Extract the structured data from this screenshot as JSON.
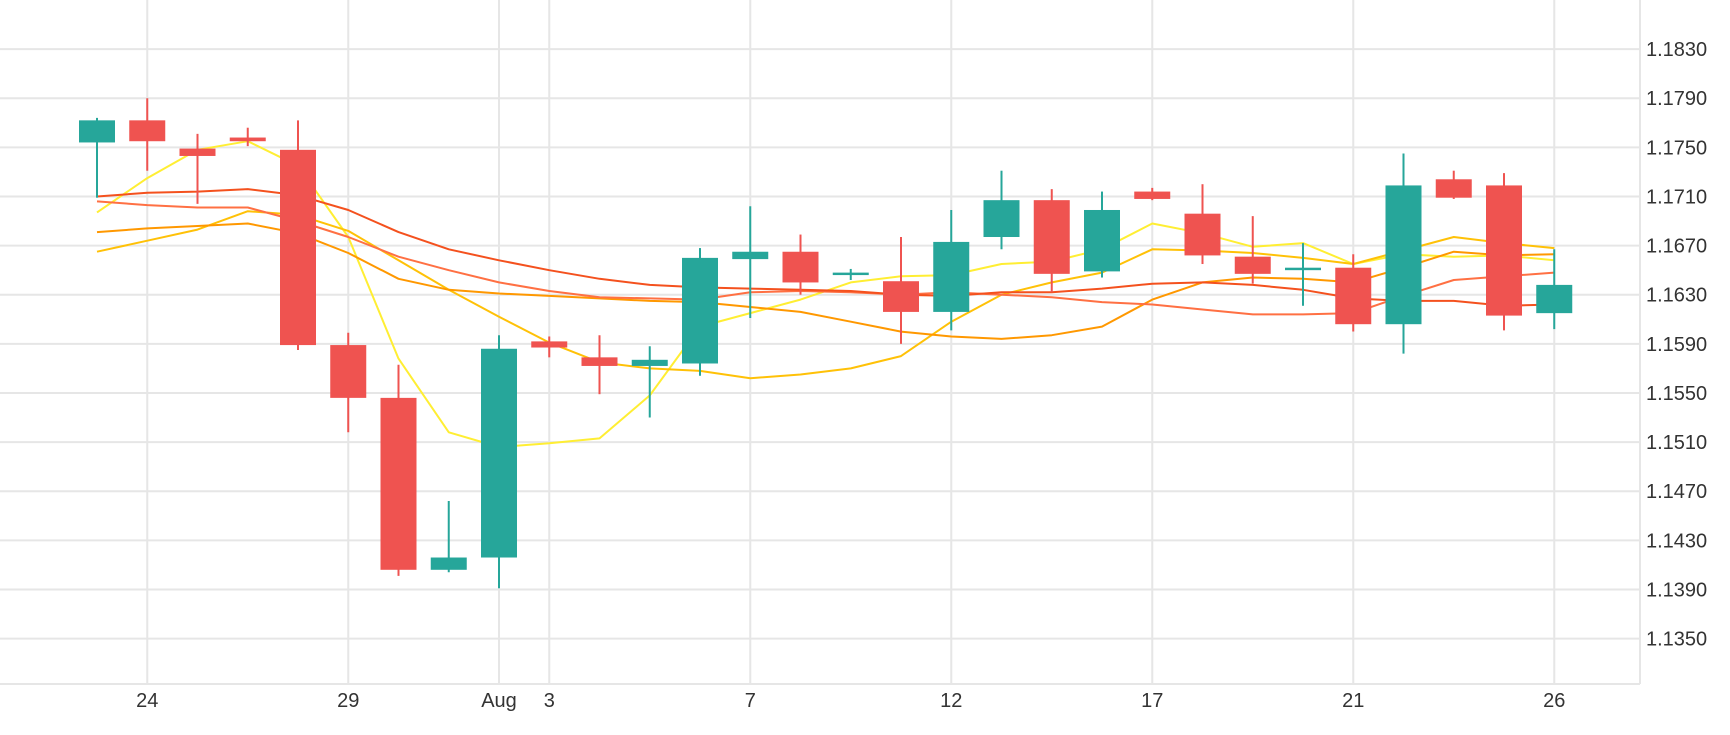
{
  "chart_data": {
    "type": "candlestick",
    "y_ticks": [
      "1.1830",
      "1.1790",
      "1.1750",
      "1.1710",
      "1.1670",
      "1.1630",
      "1.1590",
      "1.1550",
      "1.1510",
      "1.1470",
      "1.1430",
      "1.1390",
      "1.1350"
    ],
    "x_ticks": [
      {
        "label": "24",
        "day": 1
      },
      {
        "label": "29",
        "day": 5
      },
      {
        "label": "Aug",
        "day": 8
      },
      {
        "label": "3",
        "day": 9
      },
      {
        "label": "7",
        "day": 13
      },
      {
        "label": "12",
        "day": 17
      },
      {
        "label": "17",
        "day": 21
      },
      {
        "label": "21",
        "day": 25
      },
      {
        "label": "26",
        "day": 29
      }
    ],
    "ylim": [
      1.1313,
      1.187
    ],
    "grid": true,
    "colors": {
      "up": "#26a69a",
      "down": "#ef5350",
      "grid": "#e6e6e6"
    },
    "candles": [
      {
        "day": 0,
        "open": 1.1754,
        "high": 1.1774,
        "low": 1.1709,
        "close": 1.1772
      },
      {
        "day": 1,
        "open": 1.1772,
        "high": 1.179,
        "low": 1.1731,
        "close": 1.1755
      },
      {
        "day": 2,
        "open": 1.1749,
        "high": 1.1761,
        "low": 1.1704,
        "close": 1.1743
      },
      {
        "day": 3,
        "open": 1.1758,
        "high": 1.1766,
        "low": 1.1751,
        "close": 1.1755
      },
      {
        "day": 4,
        "open": 1.1748,
        "high": 1.1772,
        "low": 1.1585,
        "close": 1.1589
      },
      {
        "day": 5,
        "open": 1.1589,
        "high": 1.1599,
        "low": 1.1518,
        "close": 1.1546
      },
      {
        "day": 6,
        "open": 1.1546,
        "high": 1.1573,
        "low": 1.1401,
        "close": 1.1406
      },
      {
        "day": 7,
        "open": 1.1406,
        "high": 1.1462,
        "low": 1.1404,
        "close": 1.1416
      },
      {
        "day": 8,
        "open": 1.1416,
        "high": 1.1597,
        "low": 1.1391,
        "close": 1.1586
      },
      {
        "day": 9,
        "open": 1.1592,
        "high": 1.1596,
        "low": 1.1579,
        "close": 1.1587
      },
      {
        "day": 10,
        "open": 1.1579,
        "high": 1.1597,
        "low": 1.1549,
        "close": 1.1572
      },
      {
        "day": 11,
        "open": 1.1572,
        "high": 1.1588,
        "low": 1.153,
        "close": 1.1577
      },
      {
        "day": 12,
        "open": 1.1574,
        "high": 1.1668,
        "low": 1.1564,
        "close": 1.166
      },
      {
        "day": 13,
        "open": 1.1659,
        "high": 1.1702,
        "low": 1.1611,
        "close": 1.1665
      },
      {
        "day": 14,
        "open": 1.1665,
        "high": 1.1679,
        "low": 1.163,
        "close": 1.164
      },
      {
        "day": 15,
        "open": 1.1646,
        "high": 1.1651,
        "low": 1.1642,
        "close": 1.1648
      },
      {
        "day": 16,
        "open": 1.1641,
        "high": 1.1677,
        "low": 1.159,
        "close": 1.1616
      },
      {
        "day": 17,
        "open": 1.1616,
        "high": 1.1699,
        "low": 1.1601,
        "close": 1.1673
      },
      {
        "day": 18,
        "open": 1.1677,
        "high": 1.1731,
        "low": 1.1667,
        "close": 1.1707
      },
      {
        "day": 19,
        "open": 1.1707,
        "high": 1.1716,
        "low": 1.1632,
        "close": 1.1647
      },
      {
        "day": 20,
        "open": 1.1649,
        "high": 1.1714,
        "low": 1.1644,
        "close": 1.1699
      },
      {
        "day": 21,
        "open": 1.1714,
        "high": 1.1717,
        "low": 1.1707,
        "close": 1.1708
      },
      {
        "day": 22,
        "open": 1.1696,
        "high": 1.172,
        "low": 1.1655,
        "close": 1.1662
      },
      {
        "day": 23,
        "open": 1.1661,
        "high": 1.1694,
        "low": 1.1639,
        "close": 1.1647
      },
      {
        "day": 24,
        "open": 1.165,
        "high": 1.1672,
        "low": 1.1621,
        "close": 1.1652
      },
      {
        "day": 25,
        "open": 1.1652,
        "high": 1.1663,
        "low": 1.16,
        "close": 1.1606
      },
      {
        "day": 26,
        "open": 1.1606,
        "high": 1.1745,
        "low": 1.1582,
        "close": 1.1719
      },
      {
        "day": 27,
        "open": 1.1724,
        "high": 1.1731,
        "low": 1.1708,
        "close": 1.1709
      },
      {
        "day": 28,
        "open": 1.1719,
        "high": 1.1729,
        "low": 1.1601,
        "close": 1.1613
      },
      {
        "day": 29,
        "open": 1.1615,
        "high": 1.1667,
        "low": 1.1602,
        "close": 1.1638
      }
    ],
    "series": [
      {
        "color": "#ffee33",
        "values": [
          [
            0,
            1.1697
          ],
          [
            1,
            1.1725
          ],
          [
            2,
            1.1748
          ],
          [
            3,
            1.1755
          ],
          [
            4,
            1.1735
          ],
          [
            5,
            1.1677
          ],
          [
            6,
            1.1578
          ],
          [
            7,
            1.1518
          ],
          [
            8,
            1.1506
          ],
          [
            9,
            1.1509
          ],
          [
            10,
            1.1513
          ],
          [
            11,
            1.1548
          ],
          [
            12,
            1.1604
          ],
          [
            13,
            1.1615
          ],
          [
            14,
            1.1626
          ],
          [
            15,
            1.164
          ],
          [
            16,
            1.1645
          ],
          [
            17,
            1.1646
          ],
          [
            18,
            1.1655
          ],
          [
            19,
            1.1657
          ],
          [
            20,
            1.1667
          ],
          [
            21,
            1.1688
          ],
          [
            22,
            1.168
          ],
          [
            23,
            1.1669
          ],
          [
            24,
            1.1672
          ],
          [
            25,
            1.1655
          ],
          [
            26,
            1.1663
          ],
          [
            27,
            1.1661
          ],
          [
            28,
            1.1662
          ],
          [
            29,
            1.1658
          ]
        ]
      },
      {
        "color": "#ffc107",
        "values": [
          [
            0,
            1.1665
          ],
          [
            1,
            1.1674
          ],
          [
            2,
            1.1683
          ],
          [
            3,
            1.1698
          ],
          [
            4,
            1.1695
          ],
          [
            5,
            1.1682
          ],
          [
            6,
            1.1658
          ],
          [
            7,
            1.1634
          ],
          [
            8,
            1.1612
          ],
          [
            9,
            1.1591
          ],
          [
            10,
            1.1575
          ],
          [
            11,
            1.157
          ],
          [
            12,
            1.1568
          ],
          [
            13,
            1.1562
          ],
          [
            14,
            1.1565
          ],
          [
            15,
            1.157
          ],
          [
            16,
            1.158
          ],
          [
            17,
            1.1608
          ],
          [
            18,
            1.163
          ],
          [
            19,
            1.164
          ],
          [
            20,
            1.1648
          ],
          [
            21,
            1.1667
          ],
          [
            22,
            1.1666
          ],
          [
            23,
            1.1664
          ],
          [
            24,
            1.166
          ],
          [
            25,
            1.1655
          ],
          [
            26,
            1.1666
          ],
          [
            27,
            1.1677
          ],
          [
            28,
            1.1672
          ],
          [
            29,
            1.1668
          ]
        ]
      },
      {
        "color": "#ff9800",
        "values": [
          [
            0,
            1.1681
          ],
          [
            1,
            1.1684
          ],
          [
            2,
            1.1686
          ],
          [
            3,
            1.1688
          ],
          [
            4,
            1.168
          ],
          [
            5,
            1.1664
          ],
          [
            6,
            1.1643
          ],
          [
            7,
            1.1634
          ],
          [
            8,
            1.1631
          ],
          [
            9,
            1.1629
          ],
          [
            10,
            1.1627
          ],
          [
            11,
            1.1625
          ],
          [
            12,
            1.1624
          ],
          [
            13,
            1.162
          ],
          [
            14,
            1.1616
          ],
          [
            15,
            1.1608
          ],
          [
            16,
            1.16
          ],
          [
            17,
            1.1596
          ],
          [
            18,
            1.1594
          ],
          [
            19,
            1.1597
          ],
          [
            20,
            1.1604
          ],
          [
            21,
            1.1626
          ],
          [
            22,
            1.164
          ],
          [
            23,
            1.1644
          ],
          [
            24,
            1.1643
          ],
          [
            25,
            1.164
          ],
          [
            26,
            1.1652
          ],
          [
            27,
            1.1665
          ],
          [
            28,
            1.1662
          ],
          [
            29,
            1.1663
          ]
        ]
      },
      {
        "color": "#ff7043",
        "values": [
          [
            0,
            1.1706
          ],
          [
            1,
            1.1703
          ],
          [
            2,
            1.1701
          ],
          [
            3,
            1.1701
          ],
          [
            4,
            1.169
          ],
          [
            5,
            1.1677
          ],
          [
            6,
            1.1661
          ],
          [
            7,
            1.165
          ],
          [
            8,
            1.164
          ],
          [
            9,
            1.1633
          ],
          [
            10,
            1.1628
          ],
          [
            11,
            1.1627
          ],
          [
            12,
            1.1626
          ],
          [
            13,
            1.1632
          ],
          [
            14,
            1.1633
          ],
          [
            15,
            1.1632
          ],
          [
            16,
            1.163
          ],
          [
            17,
            1.1632
          ],
          [
            18,
            1.163
          ],
          [
            19,
            1.1628
          ],
          [
            20,
            1.1624
          ],
          [
            21,
            1.1622
          ],
          [
            22,
            1.1618
          ],
          [
            23,
            1.1614
          ],
          [
            24,
            1.1614
          ],
          [
            25,
            1.1615
          ],
          [
            26,
            1.1629
          ],
          [
            27,
            1.1642
          ],
          [
            28,
            1.1645
          ],
          [
            29,
            1.1648
          ]
        ]
      },
      {
        "color": "#f4511e",
        "values": [
          [
            0,
            1.171
          ],
          [
            1,
            1.1713
          ],
          [
            2,
            1.1714
          ],
          [
            3,
            1.1716
          ],
          [
            4,
            1.1711
          ],
          [
            5,
            1.1699
          ],
          [
            6,
            1.1681
          ],
          [
            7,
            1.1667
          ],
          [
            8,
            1.1658
          ],
          [
            9,
            1.165
          ],
          [
            10,
            1.1643
          ],
          [
            11,
            1.1638
          ],
          [
            12,
            1.1636
          ],
          [
            13,
            1.1635
          ],
          [
            14,
            1.1634
          ],
          [
            15,
            1.1633
          ],
          [
            16,
            1.163
          ],
          [
            17,
            1.1629
          ],
          [
            18,
            1.1632
          ],
          [
            19,
            1.1632
          ],
          [
            20,
            1.1635
          ],
          [
            21,
            1.1639
          ],
          [
            22,
            1.164
          ],
          [
            23,
            1.1638
          ],
          [
            24,
            1.1634
          ],
          [
            25,
            1.1627
          ],
          [
            26,
            1.1625
          ],
          [
            27,
            1.1625
          ],
          [
            28,
            1.1621
          ],
          [
            29,
            1.1622
          ]
        ]
      }
    ]
  }
}
